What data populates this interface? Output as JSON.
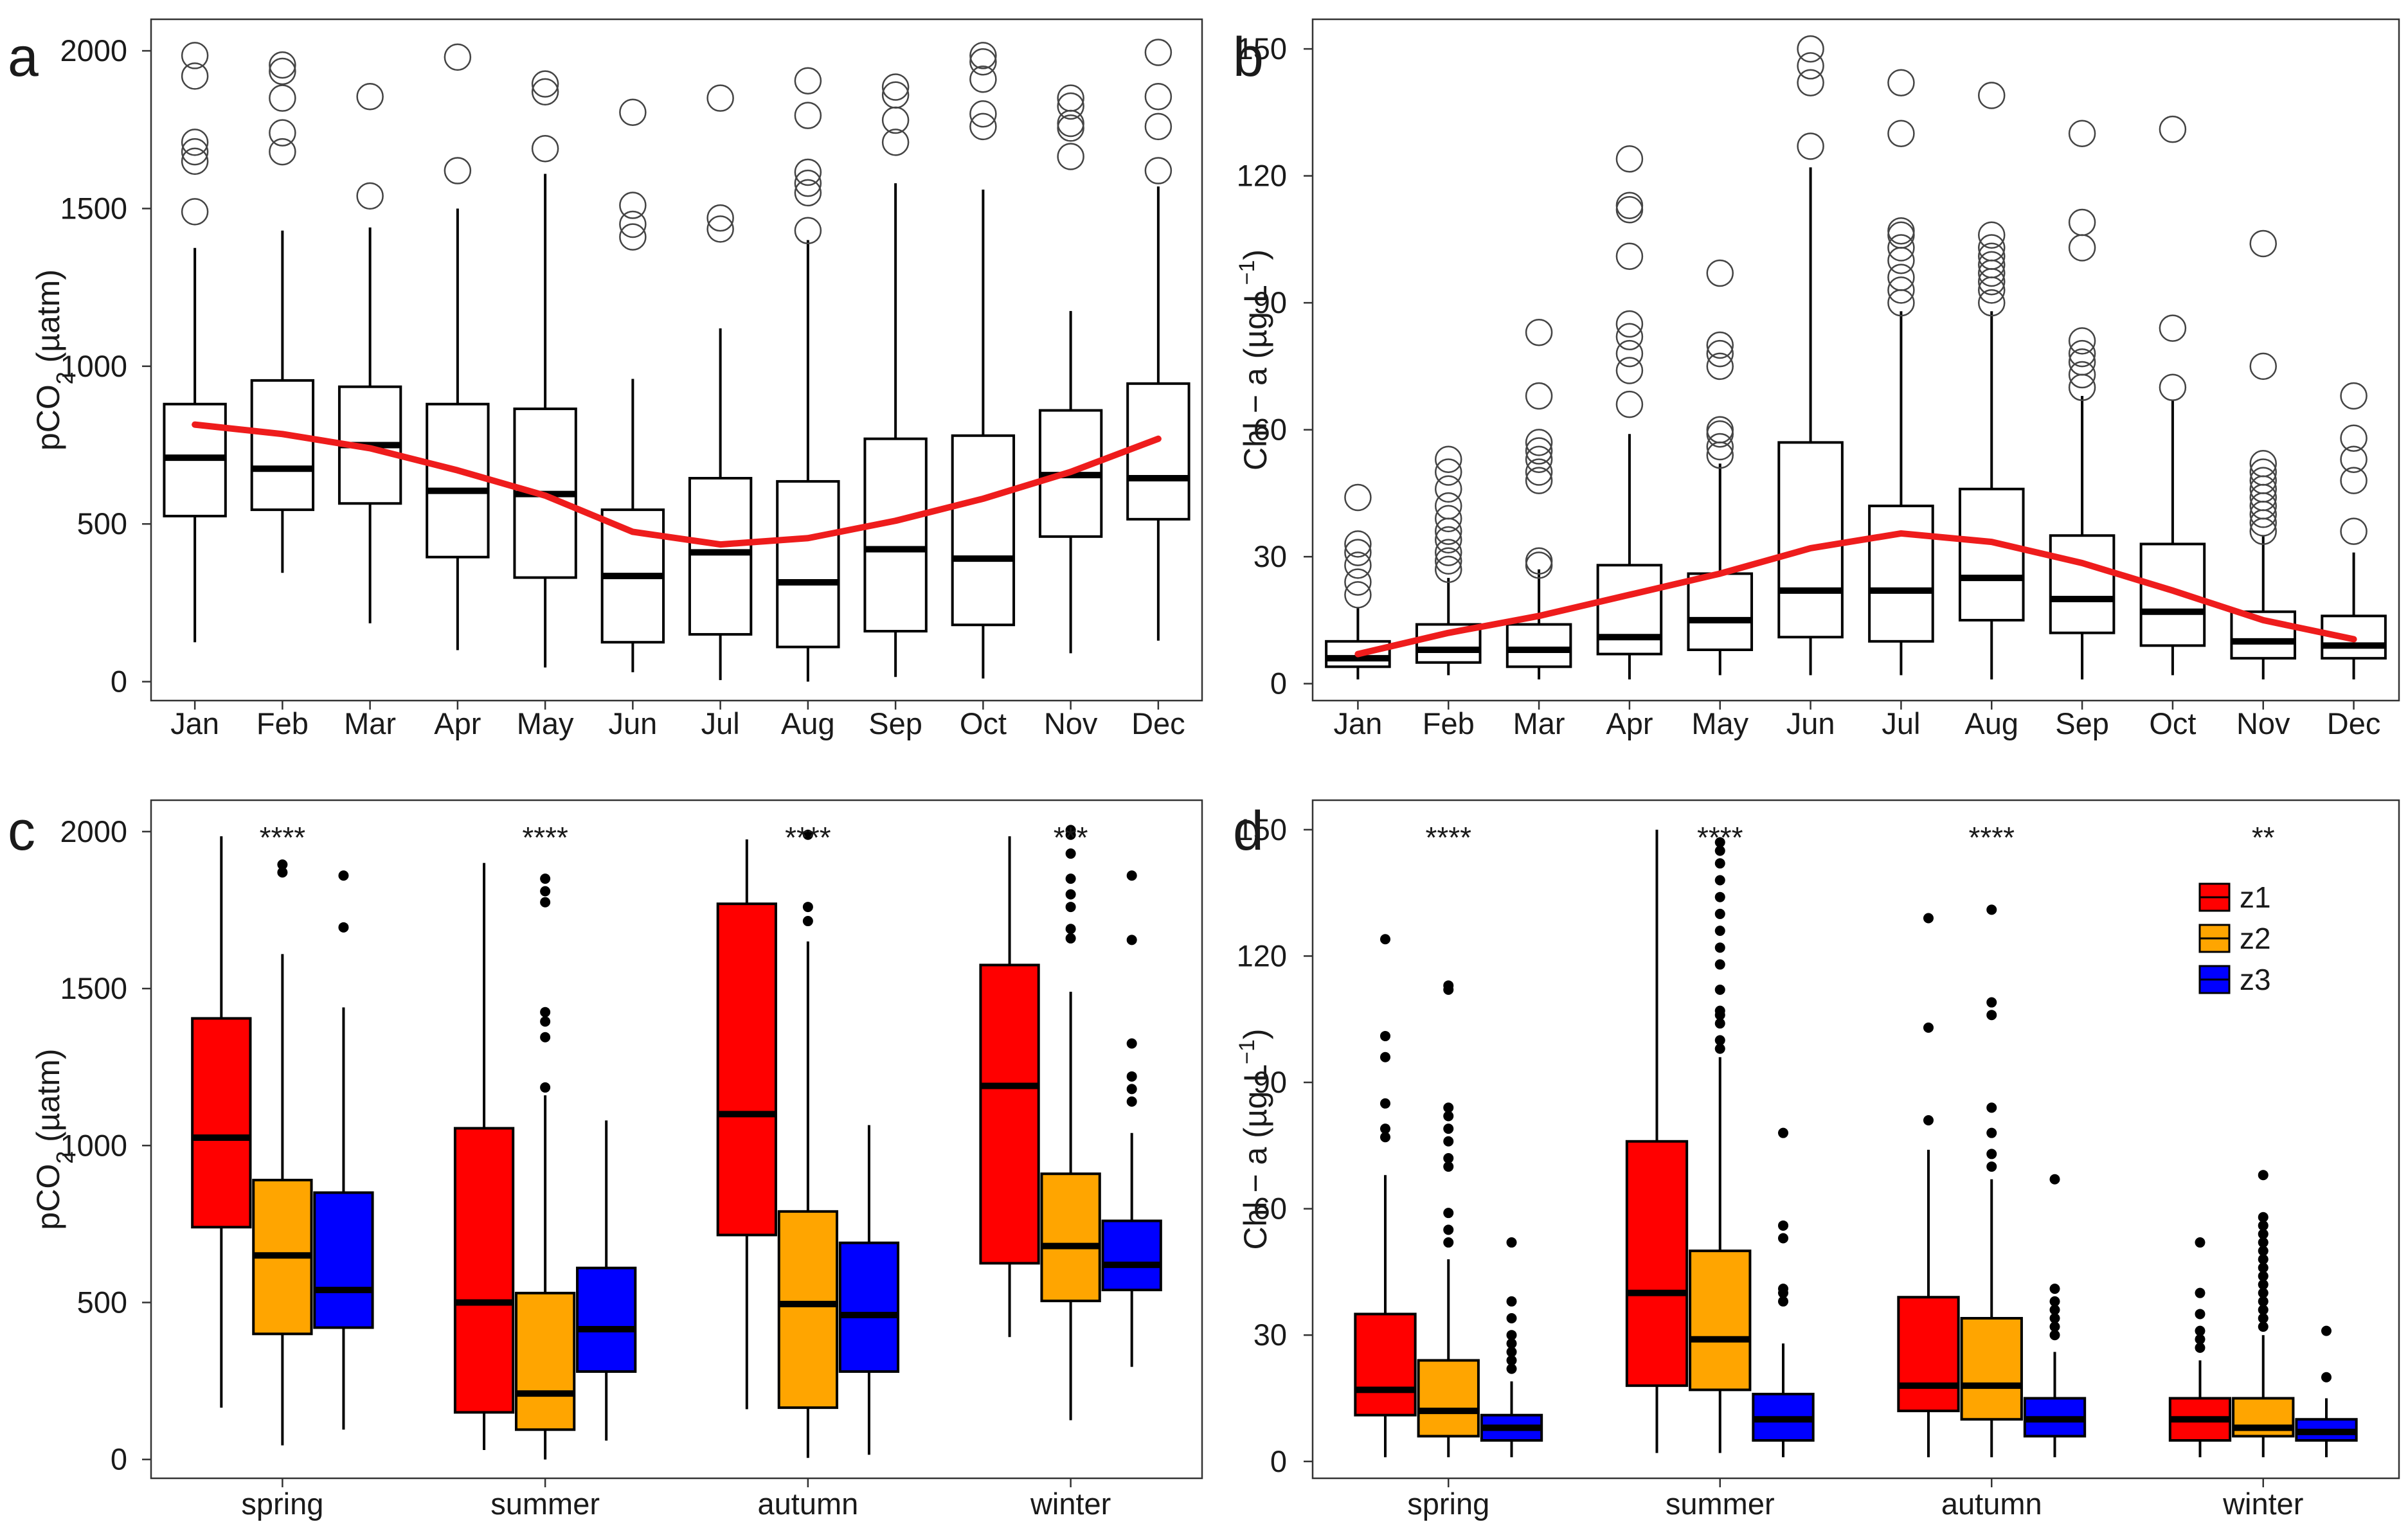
{
  "chart_data": [
    {
      "panel": "a",
      "type": "box",
      "ylabel": "pCO2 (µatm)",
      "ylabel_main": "pCO",
      "ylabel_sub": "2",
      "ylabel_unit": " (µatm)",
      "ylim": [
        -60,
        2100
      ],
      "yticks": [
        0,
        500,
        1000,
        1500,
        2000
      ],
      "categories": [
        "Jan",
        "Feb",
        "Mar",
        "Apr",
        "May",
        "Jun",
        "Jul",
        "Aug",
        "Sep",
        "Oct",
        "Nov",
        "Dec"
      ],
      "boxes": [
        {
          "min": 125,
          "q1": 525,
          "median": 710,
          "q3": 880,
          "max": 1375,
          "outliers": [
            1490,
            1650,
            1680,
            1710,
            1920,
            1985
          ]
        },
        {
          "min": 345,
          "q1": 545,
          "median": 675,
          "q3": 955,
          "max": 1430,
          "outliers": [
            1680,
            1740,
            1850,
            1935,
            1955
          ]
        },
        {
          "min": 185,
          "q1": 565,
          "median": 750,
          "q3": 935,
          "max": 1440,
          "outliers": [
            1540,
            1855
          ]
        },
        {
          "min": 100,
          "q1": 395,
          "median": 605,
          "q3": 880,
          "max": 1500,
          "outliers": [
            1620,
            1980
          ]
        },
        {
          "min": 45,
          "q1": 330,
          "median": 595,
          "q3": 865,
          "max": 1610,
          "outliers": [
            1690,
            1870,
            1895
          ]
        },
        {
          "min": 30,
          "q1": 125,
          "median": 335,
          "q3": 545,
          "max": 960,
          "outliers": [
            1410,
            1450,
            1510,
            1805
          ]
        },
        {
          "min": 5,
          "q1": 150,
          "median": 410,
          "q3": 645,
          "max": 1120,
          "outliers": [
            1435,
            1470,
            1850
          ]
        },
        {
          "min": 0,
          "q1": 110,
          "median": 315,
          "q3": 635,
          "max": 1400,
          "outliers": [
            1430,
            1550,
            1580,
            1615,
            1795,
            1905
          ]
        },
        {
          "min": 15,
          "q1": 160,
          "median": 420,
          "q3": 770,
          "max": 1580,
          "outliers": [
            1710,
            1780,
            1860,
            1885
          ]
        },
        {
          "min": 10,
          "q1": 180,
          "median": 390,
          "q3": 780,
          "max": 1560,
          "outliers": [
            1760,
            1800,
            1910,
            1965,
            1985
          ]
        },
        {
          "min": 90,
          "q1": 460,
          "median": 655,
          "q3": 860,
          "max": 1175,
          "outliers": [
            1665,
            1755,
            1770,
            1825,
            1850
          ]
        },
        {
          "min": 130,
          "q1": 515,
          "median": 645,
          "q3": 945,
          "max": 1570,
          "outliers": [
            1620,
            1760,
            1855,
            1995
          ]
        }
      ],
      "trend": [
        815,
        785,
        740,
        670,
        590,
        475,
        435,
        455,
        510,
        580,
        665,
        770
      ]
    },
    {
      "panel": "b",
      "type": "box",
      "ylabel": "Chl − a (µg L−1)",
      "ylabel_main": "Chl − a (µg L",
      "ylabel_sup": "−1",
      "ylabel_end": ")",
      "ylim": [
        -4,
        157
      ],
      "yticks": [
        0,
        30,
        60,
        90,
        120,
        150
      ],
      "categories": [
        "Jan",
        "Feb",
        "Mar",
        "Apr",
        "May",
        "Jun",
        "Jul",
        "Aug",
        "Sep",
        "Oct",
        "Nov",
        "Dec"
      ],
      "boxes": [
        {
          "min": 1,
          "q1": 4,
          "median": 6,
          "q3": 10,
          "max": 18,
          "outliers": [
            21,
            24,
            28,
            31,
            33,
            44
          ]
        },
        {
          "min": 2,
          "q1": 5,
          "median": 8,
          "q3": 14,
          "max": 25,
          "outliers": [
            27,
            29,
            31,
            34,
            36,
            39,
            42,
            46,
            50,
            53
          ]
        },
        {
          "min": 1,
          "q1": 4,
          "median": 8,
          "q3": 14,
          "max": 27,
          "outliers": [
            28,
            29,
            48,
            50,
            53,
            55,
            57,
            68,
            83
          ]
        },
        {
          "min": 1,
          "q1": 7,
          "median": 11,
          "q3": 28,
          "max": 59,
          "outliers": [
            66,
            74,
            78,
            82,
            85,
            101,
            112,
            113,
            124
          ]
        },
        {
          "min": 2,
          "q1": 8,
          "median": 15,
          "q3": 26,
          "max": 52,
          "outliers": [
            54,
            56,
            59,
            60,
            75,
            78,
            80,
            97
          ]
        },
        {
          "min": 2,
          "q1": 11,
          "median": 22,
          "q3": 57,
          "max": 122,
          "outliers": [
            127,
            142,
            146,
            150
          ]
        },
        {
          "min": 2,
          "q1": 10,
          "median": 22,
          "q3": 42,
          "max": 88,
          "outliers": [
            90,
            93,
            96,
            100,
            103,
            106,
            107,
            130,
            142
          ]
        },
        {
          "min": 1,
          "q1": 15,
          "median": 25,
          "q3": 46,
          "max": 88,
          "outliers": [
            90,
            93,
            95,
            97,
            99,
            101,
            103,
            106,
            139
          ]
        },
        {
          "min": 1,
          "q1": 12,
          "median": 20,
          "q3": 35,
          "max": 68,
          "outliers": [
            70,
            73,
            76,
            78,
            81,
            103,
            109,
            130
          ]
        },
        {
          "min": 2,
          "q1": 9,
          "median": 17,
          "q3": 33,
          "max": 67,
          "outliers": [
            70,
            84,
            131
          ]
        },
        {
          "min": 1,
          "q1": 6,
          "median": 10,
          "q3": 17,
          "max": 35,
          "outliers": [
            36,
            38,
            40,
            42,
            44,
            46,
            48,
            50,
            52,
            75,
            104
          ]
        },
        {
          "min": 1,
          "q1": 6,
          "median": 9,
          "q3": 16,
          "max": 31,
          "outliers": [
            36,
            48,
            53,
            58,
            68
          ]
        }
      ],
      "trend": [
        7,
        12,
        16,
        21,
        26,
        32,
        35.5,
        33.5,
        28.5,
        22,
        15,
        10.5
      ]
    },
    {
      "panel": "c",
      "type": "grouped-box",
      "ylabel": "pCO2 (µatm)",
      "ylabel_main": "pCO",
      "ylabel_sub": "2",
      "ylabel_unit": " (µatm)",
      "ylim": [
        -60,
        2100
      ],
      "yticks": [
        0,
        500,
        1000,
        1500,
        2000
      ],
      "categories": [
        "spring",
        "summer",
        "autumn",
        "winter"
      ],
      "significance": [
        "****",
        "****",
        "****",
        "***"
      ],
      "series": [
        "z1",
        "z2",
        "z3"
      ],
      "boxes": [
        [
          {
            "min": 165,
            "q1": 740,
            "median": 1025,
            "q3": 1405,
            "max": 1985,
            "outliers": []
          },
          {
            "min": 45,
            "q1": 400,
            "median": 650,
            "q3": 890,
            "max": 1610,
            "outliers": [
              1870,
              1895
            ]
          },
          {
            "min": 95,
            "q1": 420,
            "median": 540,
            "q3": 850,
            "max": 1440,
            "outliers": [
              1695,
              1860
            ]
          }
        ],
        [
          {
            "min": 30,
            "q1": 150,
            "median": 500,
            "q3": 1055,
            "max": 1900,
            "outliers": []
          },
          {
            "min": 0,
            "q1": 95,
            "median": 210,
            "q3": 530,
            "max": 1160,
            "outliers": [
              1185,
              1345,
              1395,
              1425,
              1775,
              1810,
              1850
            ]
          },
          {
            "min": 60,
            "q1": 280,
            "median": 415,
            "q3": 610,
            "max": 1080,
            "outliers": []
          }
        ],
        [
          {
            "min": 160,
            "q1": 715,
            "median": 1100,
            "q3": 1770,
            "max": 1975,
            "outliers": []
          },
          {
            "min": 5,
            "q1": 165,
            "median": 495,
            "q3": 790,
            "max": 1650,
            "outliers": [
              1715,
              1760,
              1990
            ]
          },
          {
            "min": 15,
            "q1": 280,
            "median": 460,
            "q3": 690,
            "max": 1065,
            "outliers": []
          }
        ],
        [
          {
            "min": 390,
            "q1": 625,
            "median": 1190,
            "q3": 1575,
            "max": 1985,
            "outliers": []
          },
          {
            "min": 125,
            "q1": 505,
            "median": 680,
            "q3": 910,
            "max": 1490,
            "outliers": [
              1660,
              1690,
              1760,
              1800,
              1850,
              1930,
              1990,
              2005
            ]
          },
          {
            "min": 295,
            "q1": 540,
            "median": 620,
            "q3": 760,
            "max": 1040,
            "outliers": [
              1140,
              1180,
              1220,
              1325,
              1655,
              1860
            ]
          }
        ]
      ]
    },
    {
      "panel": "d",
      "type": "grouped-box",
      "ylabel": "Chl − a (µg L−1)",
      "ylabel_main": "Chl − a (µg L",
      "ylabel_sup": "−1",
      "ylabel_end": ")",
      "ylim": [
        -4,
        157
      ],
      "yticks": [
        0,
        30,
        60,
        90,
        120,
        150
      ],
      "categories": [
        "spring",
        "summer",
        "autumn",
        "winter"
      ],
      "significance": [
        "****",
        "****",
        "****",
        "**"
      ],
      "series": [
        "z1",
        "z2",
        "z3"
      ],
      "legend": [
        "z1",
        "z2",
        "z3"
      ],
      "boxes": [
        [
          {
            "min": 1,
            "q1": 11,
            "median": 17,
            "q3": 35,
            "max": 68,
            "outliers": [
              77,
              79,
              85,
              96,
              101,
              124
            ]
          },
          {
            "min": 1,
            "q1": 6,
            "median": 12,
            "q3": 24,
            "max": 48,
            "outliers": [
              52,
              55,
              59,
              70,
              72,
              76,
              79,
              82,
              84,
              112,
              113
            ]
          },
          {
            "min": 1,
            "q1": 5,
            "median": 8,
            "q3": 11,
            "max": 19,
            "outliers": [
              22,
              24,
              26,
              28,
              30,
              34,
              38,
              52
            ]
          }
        ],
        [
          {
            "min": 2,
            "q1": 18,
            "median": 40,
            "q3": 76,
            "max": 150,
            "outliers": []
          },
          {
            "min": 2,
            "q1": 17,
            "median": 29,
            "q3": 50,
            "max": 96,
            "outliers": [
              98,
              100,
              104,
              106,
              107,
              112,
              118,
              122,
              126,
              130,
              134,
              138,
              142,
              145,
              147
            ]
          },
          {
            "min": 1,
            "q1": 5,
            "median": 10,
            "q3": 16,
            "max": 28,
            "outliers": [
              38,
              40,
              41,
              53,
              56,
              78
            ]
          }
        ],
        [
          {
            "min": 1,
            "q1": 12,
            "median": 18,
            "q3": 39,
            "max": 74,
            "outliers": [
              81,
              103,
              129
            ]
          },
          {
            "min": 1,
            "q1": 10,
            "median": 18,
            "q3": 34,
            "max": 67,
            "outliers": [
              70,
              73,
              78,
              84,
              106,
              109,
              131
            ]
          },
          {
            "min": 1,
            "q1": 6,
            "median": 10,
            "q3": 15,
            "max": 26,
            "outliers": [
              30,
              32,
              34,
              36,
              38,
              41,
              67
            ]
          }
        ],
        [
          {
            "min": 1,
            "q1": 5,
            "median": 10,
            "q3": 15,
            "max": 24,
            "outliers": [
              27,
              29,
              31,
              35,
              40,
              52
            ]
          },
          {
            "min": 1,
            "q1": 6,
            "median": 8,
            "q3": 15,
            "max": 30,
            "outliers": [
              32,
              34,
              36,
              38,
              40,
              42,
              44,
              46,
              48,
              50,
              52,
              54,
              56,
              58,
              68
            ]
          },
          {
            "min": 1,
            "q1": 5,
            "median": 7,
            "q3": 10,
            "max": 15,
            "outliers": [
              20,
              31
            ]
          }
        ]
      ]
    }
  ],
  "colors": {
    "z1": "#ff0000",
    "z2": "#ffa500",
    "z3": "#0000ff",
    "trend": "#ee1c1c",
    "box_line": "#000000",
    "outlier_a_b": "#444444"
  }
}
